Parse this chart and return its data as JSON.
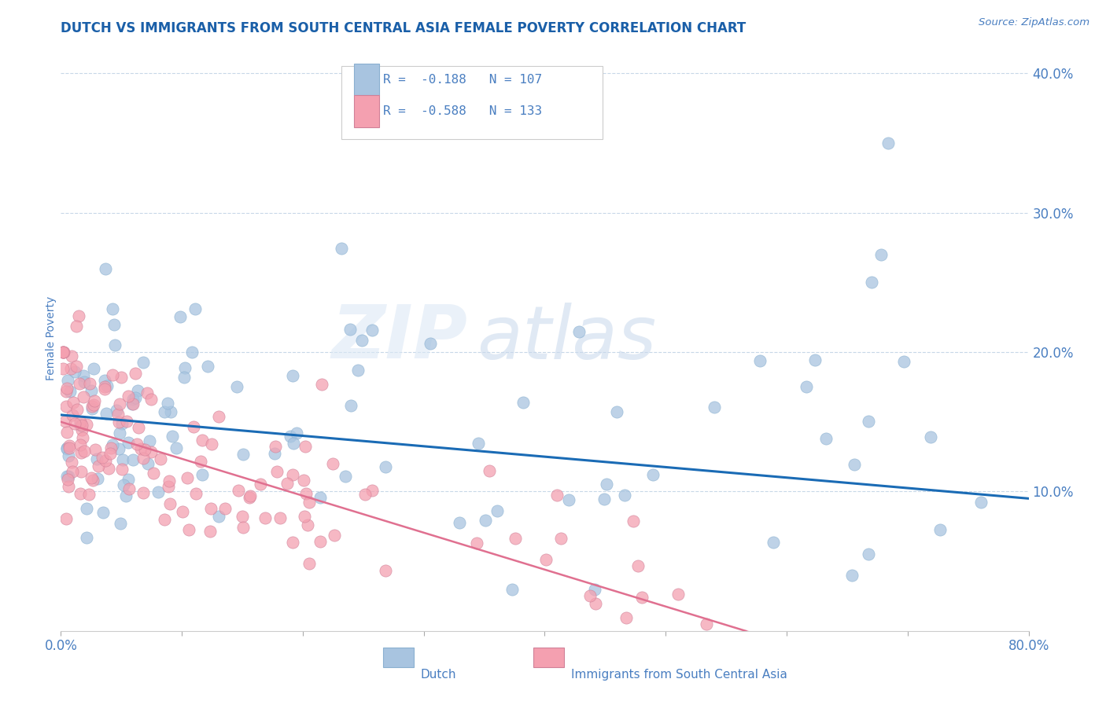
{
  "title": "DUTCH VS IMMIGRANTS FROM SOUTH CENTRAL ASIA FEMALE POVERTY CORRELATION CHART",
  "source": "Source: ZipAtlas.com",
  "ylabel": "Female Poverty",
  "xlim": [
    0.0,
    0.8
  ],
  "ylim": [
    0.0,
    0.42
  ],
  "xtick_positions": [
    0.0,
    0.1,
    0.2,
    0.3,
    0.4,
    0.5,
    0.6,
    0.7,
    0.8
  ],
  "xticklabels": [
    "0.0%",
    "",
    "",
    "",
    "",
    "",
    "",
    "",
    "80.0%"
  ],
  "ytick_positions": [
    0.1,
    0.2,
    0.3,
    0.4
  ],
  "yticklabels": [
    "10.0%",
    "20.0%",
    "30.0%",
    "40.0%"
  ],
  "legend_r1": "R =  -0.188",
  "legend_n1": "N = 107",
  "legend_r2": "R =  -0.588",
  "legend_n2": "N = 133",
  "dutch_color": "#a8c4e0",
  "immigrant_color": "#f4a0b0",
  "dutch_line_color": "#1a6bb5",
  "immigrant_line_color": "#e07090",
  "watermark_zip": "ZIP",
  "watermark_atlas": "atlas",
  "label_dutch": "Dutch",
  "label_immigrant": "Immigrants from South Central Asia",
  "title_color": "#1a5fa8",
  "tick_color": "#4a7fc1",
  "source_color": "#4a7fc1",
  "grid_color": "#c8d8e8",
  "dutch_line_intercept": 0.155,
  "dutch_line_slope": -0.075,
  "immigrant_line_intercept": 0.15,
  "immigrant_line_slope": -0.265
}
